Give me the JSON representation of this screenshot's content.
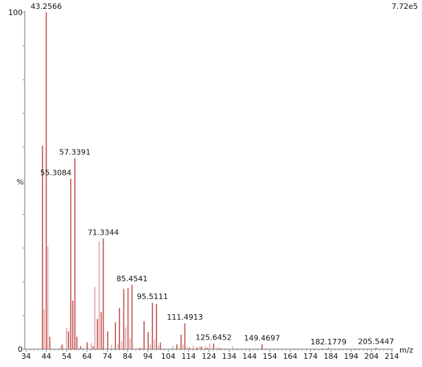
{
  "chart_data": {
    "type": "bar",
    "title": "",
    "xlabel": "m/z",
    "ylabel": "%",
    "max_intensity_label": "7.72e5",
    "xlim": [
      34,
      214
    ],
    "ylim": [
      0,
      100
    ],
    "x_ticks": [
      "34",
      "44",
      "54",
      "64",
      "74",
      "84",
      "94",
      "104",
      "114",
      "124",
      "134",
      "144",
      "154",
      "164",
      "174",
      "184",
      "194",
      "204",
      "214"
    ],
    "y_tick_labels": {
      "top": "100",
      "bottom": "0"
    },
    "colors": {
      "dark": "#c0504d",
      "light": "#e6a3a3",
      "axis": "#888888"
    },
    "peaks": [
      [
        41.4,
        60.4
      ],
      [
        42.2,
        12.0
      ],
      [
        43.2566,
        100
      ],
      [
        44.0,
        30.5
      ],
      [
        45.0,
        3.7
      ],
      [
        50.4,
        0.8
      ],
      [
        51.1,
        1.4
      ],
      [
        53.3,
        6.3
      ],
      [
        54.2,
        5.3
      ],
      [
        55.3084,
        50.6
      ],
      [
        56.3,
        14.4
      ],
      [
        57.3391,
        56.7
      ],
      [
        58.3,
        3.7
      ],
      [
        59.4,
        0.4
      ],
      [
        60.2,
        0.9
      ],
      [
        61.5,
        0.5
      ],
      [
        63.4,
        2.0
      ],
      [
        65.5,
        1.8
      ],
      [
        66.4,
        0.8
      ],
      [
        67.2,
        18.5
      ],
      [
        68.4,
        9.0
      ],
      [
        69.3,
        32.0
      ],
      [
        70.3,
        11.0
      ],
      [
        71.3344,
        32.9
      ],
      [
        73.5,
        5.3
      ],
      [
        75.4,
        1.2
      ],
      [
        77.3,
        8.0
      ],
      [
        78.5,
        1.4
      ],
      [
        79.3,
        12.2
      ],
      [
        80.4,
        2.4
      ],
      [
        81.4,
        17.9
      ],
      [
        82.4,
        6.5
      ],
      [
        83.5,
        18.1
      ],
      [
        84.5,
        3.3
      ],
      [
        85.4541,
        19.1
      ],
      [
        87.6,
        0.3
      ],
      [
        89.2,
        0.4
      ],
      [
        90.4,
        0.4
      ],
      [
        91.4,
        8.3
      ],
      [
        92.4,
        0.3
      ],
      [
        93.4,
        5.1
      ],
      [
        94.5,
        1.4
      ],
      [
        95.5111,
        13.8
      ],
      [
        96.5,
        2.8
      ],
      [
        97.5,
        13.4
      ],
      [
        98.5,
        1.0
      ],
      [
        99.4,
        2.0
      ],
      [
        105.5,
        1.0
      ],
      [
        107.5,
        1.4
      ],
      [
        108.7,
        0.3
      ],
      [
        109.6,
        4.3
      ],
      [
        110.6,
        1.3
      ],
      [
        111.4913,
        7.7
      ],
      [
        112.6,
        0.8
      ],
      [
        113.8,
        0.5
      ],
      [
        115.6,
        1.0
      ],
      [
        117.5,
        0.5
      ],
      [
        118.7,
        0.8
      ],
      [
        119.6,
        0.8
      ],
      [
        121.6,
        0.9
      ],
      [
        122.6,
        0.4
      ],
      [
        123.7,
        1.6
      ],
      [
        125.6452,
        1.7
      ],
      [
        127.6,
        0.6
      ],
      [
        128.7,
        0.3
      ],
      [
        135.0,
        0.8
      ],
      [
        149.4697,
        1.5
      ],
      [
        182.1779,
        0.4
      ],
      [
        205.5447,
        0.5
      ]
    ],
    "peak_labels": [
      {
        "mz": 43.2566,
        "intensity": 100,
        "text": "43.2566"
      },
      {
        "mz": 55.3084,
        "intensity": 50.6,
        "text": "55.3084"
      },
      {
        "mz": 57.3391,
        "intensity": 56.7,
        "text": "57.3391"
      },
      {
        "mz": 71.3344,
        "intensity": 32.9,
        "text": "71.3344"
      },
      {
        "mz": 85.4541,
        "intensity": 19.1,
        "text": "85.4541"
      },
      {
        "mz": 95.5111,
        "intensity": 13.8,
        "text": "95.5111"
      },
      {
        "mz": 111.4913,
        "intensity": 7.7,
        "text": "111.4913"
      },
      {
        "mz": 125.6452,
        "intensity": 1.7,
        "text": "125.6452"
      },
      {
        "mz": 149.4697,
        "intensity": 1.5,
        "text": "149.4697"
      },
      {
        "mz": 182.1779,
        "intensity": 0.4,
        "text": "182.1779"
      },
      {
        "mz": 205.5447,
        "intensity": 0.5,
        "text": "205.5447"
      }
    ]
  }
}
